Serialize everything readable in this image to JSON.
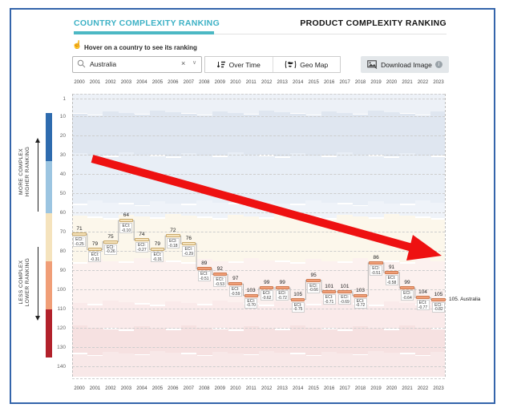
{
  "header": {
    "tabs": [
      {
        "label": "COUNTRY COMPLEXITY RANKING",
        "active": true
      },
      {
        "label": "PRODUCT COMPLEXITY RANKING",
        "active": false
      }
    ],
    "hint": "Hover on a country to see its ranking",
    "search": {
      "value": "Australia",
      "clear_label": "×",
      "chevron": "∨"
    },
    "buttons": {
      "over_time": "Over Time",
      "geo_map": "Geo Map",
      "download": "Download Image",
      "info": "i"
    }
  },
  "side_labels": {
    "more_complex": "MORE COMPLEX",
    "higher_ranking": "HIGHER RANKING",
    "less_complex": "LESS COMPLEX",
    "lower_ranking": "LOWER RANKING"
  },
  "colors": {
    "accent_teal": "#3CB1C5",
    "frame_blue": "#3465AB",
    "arrow_red": "#EE1111"
  },
  "chart_data": {
    "type": "line",
    "title": "Country Complexity Ranking over time (Australia)",
    "x": [
      2000,
      2001,
      2002,
      2003,
      2004,
      2005,
      2006,
      2007,
      2008,
      2009,
      2010,
      2011,
      2012,
      2013,
      2014,
      2015,
      2016,
      2017,
      2018,
      2019,
      2020,
      2021,
      2022,
      2023
    ],
    "series": [
      {
        "name": "Australia",
        "values": [
          71,
          79,
          75,
          64,
          74,
          79,
          72,
          76,
          89,
          92,
          97,
          103,
          99,
          99,
          105,
          95,
          101,
          101,
          103,
          86,
          91,
          99,
          104,
          105
        ],
        "eci": [
          "-0.25",
          "-0.31",
          "-0.26",
          "-0.10",
          "-0.27",
          "-0.31",
          "-0.18",
          "-0.29",
          "-0.51",
          "-0.53",
          "-0.59",
          "-0.70",
          "-0.62",
          "-0.72",
          "-0.75",
          "-0.66",
          "-0.71",
          "-0.69",
          "-0.72",
          "-0.51",
          "-0.58",
          "-0.64",
          "-0.77",
          "-0.82"
        ]
      }
    ],
    "eci_prefix": "ECI:",
    "annotation": "105. Australia",
    "y_ticks": [
      1,
      10,
      20,
      30,
      40,
      50,
      60,
      70,
      80,
      90,
      100,
      110,
      120,
      130,
      140
    ],
    "ylim": [
      1,
      140
    ],
    "y_inverted": true,
    "trend_arrow": "down",
    "color_scale": [
      {
        "from": 8,
        "to": 33,
        "color": "#2e6bae",
        "border": "#1f4f85"
      },
      {
        "from": 33,
        "to": 60,
        "color": "#9cc5e1",
        "border": "#7aa8c9"
      },
      {
        "from": 60,
        "to": 85,
        "color": "#f5e3bd",
        "border": "#c9a96a"
      },
      {
        "from": 85,
        "to": 110,
        "color": "#f09e77",
        "border": "#cf7c52"
      },
      {
        "from": 110,
        "to": 135,
        "color": "#b2212b",
        "border": "#8c161f"
      }
    ],
    "background_bands": [
      {
        "from": -4,
        "to": 8,
        "color": "#edf1f7"
      },
      {
        "from": 8,
        "to": 30,
        "color": "#dfe6f0"
      },
      {
        "from": 30,
        "to": 55,
        "color": "#e8eef6"
      },
      {
        "from": 55,
        "to": 62,
        "color": "#eff3f9"
      },
      {
        "from": 62,
        "to": 85,
        "color": "#fcf7eb"
      },
      {
        "from": 85,
        "to": 107,
        "color": "#fcf1ef"
      },
      {
        "from": 107,
        "to": 120,
        "color": "#faeaea"
      },
      {
        "from": 120,
        "to": 133,
        "color": "#f6e1e1"
      },
      {
        "from": 133,
        "to": 150,
        "color": "#f8e8e8"
      }
    ]
  }
}
